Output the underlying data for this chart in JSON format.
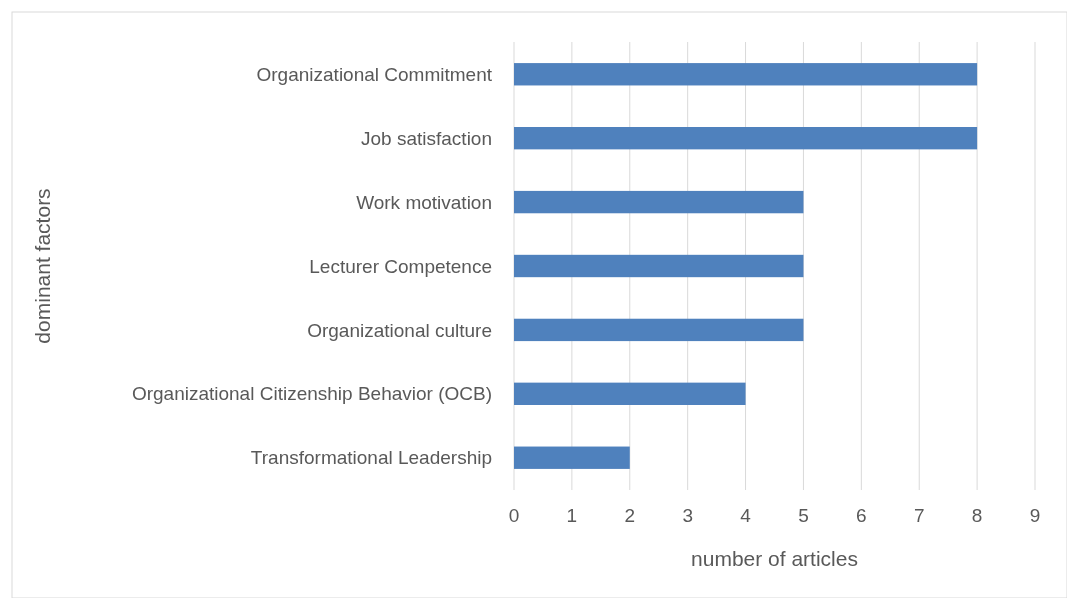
{
  "chart_data": {
    "type": "bar",
    "orientation": "horizontal",
    "xlabel": "number of articles",
    "ylabel": "dominant factors",
    "categories": [
      "Organizational Commitment",
      "Job satisfaction",
      "Work motivation",
      "Lecturer Competence",
      "Organizational culture",
      "Organizational Citizenship Behavior (OCB)",
      "Transformational Leadership"
    ],
    "values": [
      8,
      8,
      5,
      5,
      5,
      4,
      2
    ],
    "color": "#4f81bd",
    "xlim": [
      0,
      9
    ],
    "xticks": [
      0,
      1,
      2,
      3,
      4,
      5,
      6,
      7,
      8,
      9
    ],
    "grid": "x"
  }
}
